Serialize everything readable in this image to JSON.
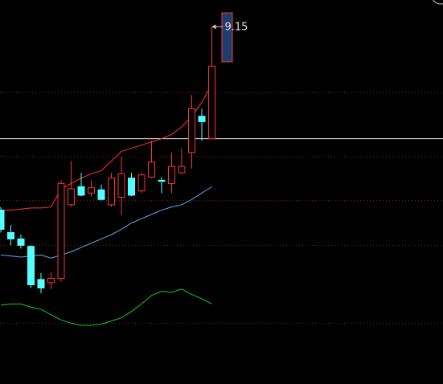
{
  "chart_data": {
    "type": "candlestick",
    "categories": [
      null,
      null,
      null,
      null,
      null,
      null,
      null,
      null,
      null,
      null,
      null,
      null,
      null,
      null,
      null,
      null,
      null,
      null,
      null,
      null,
      null,
      null
    ],
    "ohlc": [
      [
        7.43,
        7.46,
        7.22,
        7.25
      ],
      [
        7.22,
        7.29,
        7.1,
        7.16
      ],
      [
        7.16,
        7.2,
        7.07,
        7.1
      ],
      [
        7.09,
        7.1,
        6.7,
        6.73
      ],
      [
        6.78,
        6.84,
        6.65,
        6.7
      ],
      [
        6.75,
        6.85,
        6.69,
        6.79
      ],
      [
        6.79,
        7.71,
        6.76,
        7.68
      ],
      [
        7.48,
        7.89,
        7.46,
        7.63
      ],
      [
        7.65,
        7.78,
        7.56,
        7.57
      ],
      [
        7.59,
        7.71,
        7.56,
        7.64
      ],
      [
        7.62,
        7.67,
        7.52,
        7.53
      ],
      [
        7.48,
        7.78,
        7.46,
        7.73
      ],
      [
        7.55,
        7.93,
        7.38,
        7.77
      ],
      [
        7.73,
        7.78,
        7.56,
        7.57
      ],
      [
        7.61,
        7.78,
        7.59,
        7.76
      ],
      [
        7.74,
        8.08,
        7.73,
        7.88
      ],
      [
        7.71,
        7.74,
        7.59,
        7.7
      ],
      [
        7.68,
        7.97,
        7.59,
        7.84
      ],
      [
        7.78,
        8.01,
        7.77,
        7.84
      ],
      [
        7.97,
        8.51,
        7.82,
        8.38
      ],
      [
        8.31,
        8.38,
        8.08,
        8.26
      ],
      [
        8.1,
        9.15,
        8.1,
        8.78
      ]
    ],
    "up_color": "#ff3232",
    "down_color": "#54ffff",
    "lines": [
      {
        "color": "#ff3232",
        "values": [
          7.43,
          7.43,
          7.44,
          7.45,
          7.45,
          7.46,
          7.63,
          7.68,
          7.73,
          7.77,
          7.8,
          7.89,
          7.98,
          8.01,
          8.04,
          8.07,
          8.1,
          8.14,
          8.21,
          8.31,
          8.44,
          8.61
        ]
      },
      {
        "color": "#5aaaf0",
        "values": [
          7.01,
          7.0,
          6.99,
          7.0,
          7.01,
          6.98,
          7.01,
          7.04,
          7.08,
          7.12,
          7.16,
          7.2,
          7.25,
          7.31,
          7.35,
          7.39,
          7.43,
          7.46,
          7.48,
          7.53,
          7.59,
          7.65
        ]
      },
      {
        "color": "#1ec81e",
        "values": [
          6.54,
          6.55,
          6.55,
          6.52,
          6.5,
          6.45,
          6.4,
          6.37,
          6.35,
          6.35,
          6.36,
          6.39,
          6.42,
          6.48,
          6.55,
          6.63,
          6.67,
          6.66,
          6.69,
          6.64,
          6.6,
          6.55
        ]
      }
    ],
    "high_label_index": 21,
    "reference_line": 8.1,
    "gridlines": [
      8.53,
      7.93,
      7.52,
      7.1,
      6.37
    ],
    "grid_color": "#8c1e1e",
    "ylim": [
      5.8,
      9.4
    ]
  }
}
